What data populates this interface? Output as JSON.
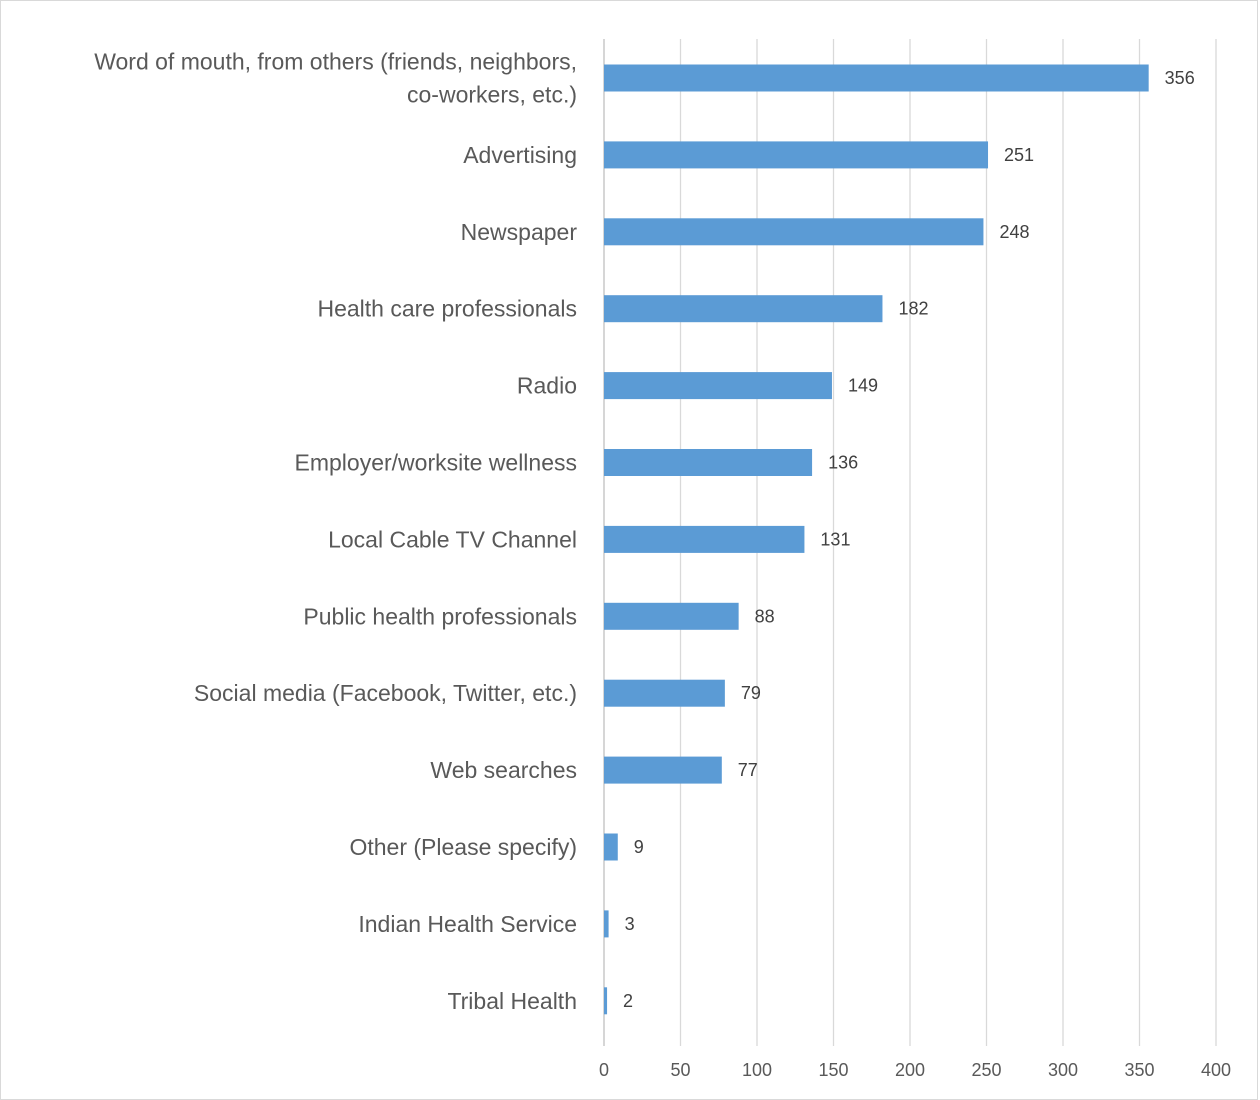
{
  "chart_data": {
    "type": "bar",
    "orientation": "horizontal",
    "categories": [
      "Word of mouth, from others (friends, neighbors, co-workers, etc.)",
      "Advertising",
      "Newspaper",
      "Health care professionals",
      "Radio",
      "Employer/worksite wellness",
      "Local Cable TV Channel",
      "Public health professionals",
      "Social media (Facebook, Twitter, etc.)",
      "Web searches",
      "Other (Please specify)",
      "Indian Health Service",
      "Tribal Health"
    ],
    "category_label_lines": [
      [
        "Word of mouth, from others (friends, neighbors,",
        "co-workers, etc.)"
      ],
      [
        "Advertising"
      ],
      [
        "Newspaper"
      ],
      [
        "Health care professionals"
      ],
      [
        "Radio"
      ],
      [
        "Employer/worksite wellness"
      ],
      [
        "Local Cable TV Channel"
      ],
      [
        "Public health professionals"
      ],
      [
        "Social media (Facebook, Twitter, etc.)"
      ],
      [
        "Web searches"
      ],
      [
        "Other (Please specify)"
      ],
      [
        "Indian Health Service"
      ],
      [
        "Tribal Health"
      ]
    ],
    "values": [
      356,
      251,
      248,
      182,
      149,
      136,
      131,
      88,
      79,
      77,
      9,
      3,
      2
    ],
    "data_labels": [
      "356",
      "251",
      "248",
      "182",
      "149",
      "136",
      "131",
      "88",
      "79",
      "77",
      "9",
      "3",
      "2"
    ],
    "xlim": [
      0,
      400
    ],
    "xticks": [
      0,
      50,
      100,
      150,
      200,
      250,
      300,
      350,
      400
    ],
    "xtick_labels": [
      "0",
      "50",
      "100",
      "150",
      "200",
      "250",
      "300",
      "350",
      "400"
    ],
    "title": "",
    "xlabel": "",
    "ylabel": "",
    "grid": "vertical",
    "legend": "none",
    "colors": {
      "bar": "#5b9bd5",
      "gridline": "#d9d9d9",
      "category_text": "#595959",
      "data_label_text": "#404040"
    }
  }
}
